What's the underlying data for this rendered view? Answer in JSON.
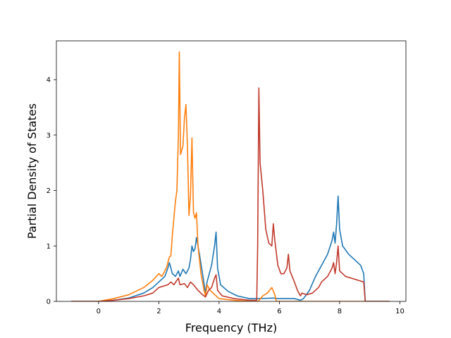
{
  "chart_data": {
    "type": "line",
    "title": "",
    "xlabel": "Frequency (THz)",
    "ylabel": "Partial Density of States",
    "xlim": [
      -1.4,
      10.2
    ],
    "ylim": [
      0,
      4.7
    ],
    "xticks": [
      0,
      2,
      4,
      6,
      8,
      10
    ],
    "yticks": [
      0,
      1,
      2,
      3,
      4
    ],
    "grid": false,
    "legend": "none",
    "series": [
      {
        "color": "#1f77b4",
        "points": [
          [
            -0.9,
            0
          ],
          [
            0,
            0
          ],
          [
            0.5,
            0.02
          ],
          [
            1.0,
            0.06
          ],
          [
            1.5,
            0.15
          ],
          [
            1.8,
            0.25
          ],
          [
            2.0,
            0.35
          ],
          [
            2.2,
            0.45
          ],
          [
            2.3,
            0.6
          ],
          [
            2.35,
            0.7
          ],
          [
            2.45,
            0.5
          ],
          [
            2.55,
            0.45
          ],
          [
            2.65,
            0.55
          ],
          [
            2.7,
            0.45
          ],
          [
            2.8,
            0.58
          ],
          [
            2.9,
            0.5
          ],
          [
            3.0,
            0.6
          ],
          [
            3.05,
            0.75
          ],
          [
            3.1,
            1.0
          ],
          [
            3.15,
            0.9
          ],
          [
            3.2,
            0.95
          ],
          [
            3.25,
            1.15
          ],
          [
            3.35,
            0.85
          ],
          [
            3.45,
            0.5
          ],
          [
            3.55,
            0.15
          ],
          [
            3.6,
            0.35
          ],
          [
            3.65,
            0.45
          ],
          [
            3.75,
            0.65
          ],
          [
            3.85,
            1.0
          ],
          [
            3.9,
            1.25
          ],
          [
            3.95,
            0.6
          ],
          [
            4.05,
            0.3
          ],
          [
            4.3,
            0.18
          ],
          [
            4.6,
            0.1
          ],
          [
            5.0,
            0.05
          ],
          [
            5.3,
            0.05
          ],
          [
            5.8,
            0.06
          ],
          [
            6.0,
            0.05
          ],
          [
            6.5,
            0.05
          ],
          [
            6.7,
            0.02
          ],
          [
            6.8,
            0.05
          ],
          [
            7.0,
            0.2
          ],
          [
            7.2,
            0.45
          ],
          [
            7.4,
            0.65
          ],
          [
            7.6,
            0.85
          ],
          [
            7.75,
            1.1
          ],
          [
            7.8,
            1.25
          ],
          [
            7.85,
            1.05
          ],
          [
            7.9,
            1.4
          ],
          [
            7.95,
            1.9
          ],
          [
            8.0,
            1.3
          ],
          [
            8.1,
            1.0
          ],
          [
            8.3,
            0.85
          ],
          [
            8.5,
            0.75
          ],
          [
            8.7,
            0.65
          ],
          [
            8.8,
            0.5
          ],
          [
            8.85,
            0
          ],
          [
            9.65,
            0
          ]
        ]
      },
      {
        "color": "#ff7f0e",
        "points": [
          [
            -0.9,
            0
          ],
          [
            0,
            0
          ],
          [
            0.5,
            0.05
          ],
          [
            1.0,
            0.12
          ],
          [
            1.5,
            0.25
          ],
          [
            1.8,
            0.38
          ],
          [
            2.0,
            0.5
          ],
          [
            2.1,
            0.45
          ],
          [
            2.25,
            0.6
          ],
          [
            2.35,
            0.8
          ],
          [
            2.4,
            0.82
          ],
          [
            2.45,
            1.2
          ],
          [
            2.5,
            1.5
          ],
          [
            2.55,
            1.8
          ],
          [
            2.6,
            2.0
          ],
          [
            2.65,
            3.0
          ],
          [
            2.68,
            4.5
          ],
          [
            2.72,
            2.65
          ],
          [
            2.8,
            2.8
          ],
          [
            2.85,
            3.3
          ],
          [
            2.9,
            3.55
          ],
          [
            2.95,
            2.8
          ],
          [
            3.0,
            1.55
          ],
          [
            3.05,
            1.9
          ],
          [
            3.1,
            2.95
          ],
          [
            3.15,
            1.6
          ],
          [
            3.2,
            1.5
          ],
          [
            3.25,
            1.6
          ],
          [
            3.3,
            1.0
          ],
          [
            3.4,
            0.5
          ],
          [
            3.5,
            0.2
          ],
          [
            3.55,
            0.1
          ],
          [
            3.6,
            0.3
          ],
          [
            3.7,
            0.2
          ],
          [
            3.8,
            0.15
          ],
          [
            4.0,
            0.05
          ],
          [
            4.5,
            0.02
          ],
          [
            5.0,
            0
          ],
          [
            5.3,
            0
          ],
          [
            5.45,
            0.1
          ],
          [
            5.6,
            0.15
          ],
          [
            5.75,
            0.25
          ],
          [
            5.85,
            0.12
          ],
          [
            5.9,
            0
          ],
          [
            9.65,
            0
          ]
        ]
      },
      {
        "color": "#c0392b",
        "points": [
          [
            -0.9,
            0
          ],
          [
            0,
            0
          ],
          [
            0.5,
            0.02
          ],
          [
            1.0,
            0.05
          ],
          [
            1.5,
            0.1
          ],
          [
            1.8,
            0.15
          ],
          [
            2.0,
            0.25
          ],
          [
            2.3,
            0.3
          ],
          [
            2.4,
            0.35
          ],
          [
            2.5,
            0.3
          ],
          [
            2.65,
            0.42
          ],
          [
            2.7,
            0.3
          ],
          [
            2.85,
            0.32
          ],
          [
            2.95,
            0.25
          ],
          [
            3.05,
            0.35
          ],
          [
            3.15,
            0.3
          ],
          [
            3.3,
            0.2
          ],
          [
            3.45,
            0.12
          ],
          [
            3.55,
            0.08
          ],
          [
            3.65,
            0.2
          ],
          [
            3.75,
            0.25
          ],
          [
            3.85,
            0.42
          ],
          [
            3.9,
            0.48
          ],
          [
            3.95,
            0.2
          ],
          [
            4.1,
            0.1
          ],
          [
            4.5,
            0.05
          ],
          [
            5.0,
            0.02
          ],
          [
            5.25,
            0.02
          ],
          [
            5.28,
            1.0
          ],
          [
            5.32,
            3.85
          ],
          [
            5.36,
            2.5
          ],
          [
            5.45,
            2.0
          ],
          [
            5.55,
            1.3
          ],
          [
            5.65,
            1.05
          ],
          [
            5.75,
            1.0
          ],
          [
            5.8,
            1.4
          ],
          [
            5.85,
            1.1
          ],
          [
            5.95,
            0.65
          ],
          [
            6.05,
            0.5
          ],
          [
            6.15,
            0.5
          ],
          [
            6.25,
            0.6
          ],
          [
            6.3,
            0.85
          ],
          [
            6.35,
            0.55
          ],
          [
            6.5,
            0.35
          ],
          [
            6.6,
            0.2
          ],
          [
            6.7,
            0.1
          ],
          [
            6.75,
            0.15
          ],
          [
            6.9,
            0.12
          ],
          [
            7.1,
            0.15
          ],
          [
            7.3,
            0.25
          ],
          [
            7.4,
            0.35
          ],
          [
            7.6,
            0.45
          ],
          [
            7.75,
            0.6
          ],
          [
            7.8,
            0.7
          ],
          [
            7.85,
            0.5
          ],
          [
            7.9,
            0.7
          ],
          [
            7.95,
            1.0
          ],
          [
            8.0,
            0.55
          ],
          [
            8.2,
            0.45
          ],
          [
            8.5,
            0.4
          ],
          [
            8.8,
            0.35
          ],
          [
            8.85,
            0
          ],
          [
            9.65,
            0
          ]
        ]
      }
    ]
  }
}
